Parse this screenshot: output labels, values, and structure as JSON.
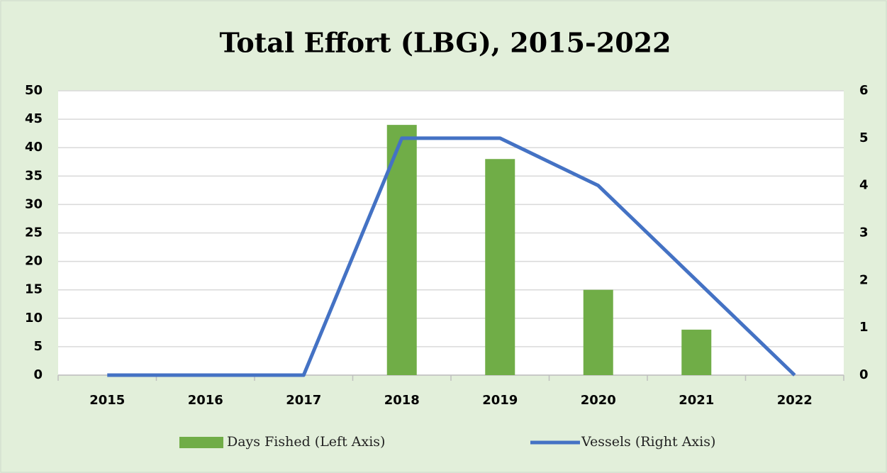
{
  "chart_data": {
    "type": "bar_line",
    "title": "Total Effort (LBG), 2015-2022",
    "categories": [
      "2015",
      "2016",
      "2017",
      "2018",
      "2019",
      "2020",
      "2021",
      "2022"
    ],
    "series": [
      {
        "name": "Days Fished (Left Axis)",
        "type": "bar",
        "color": "#70ad47",
        "values": [
          0,
          0,
          0,
          44,
          38,
          15,
          8,
          0
        ]
      },
      {
        "name": "Vessels (Right Axis)",
        "type": "line",
        "axis": "y2",
        "color": "#4472c4",
        "values": [
          0,
          0,
          0,
          5,
          5,
          4,
          2,
          0
        ]
      }
    ],
    "ylim": [
      0,
      50
    ],
    "yticks": [
      0,
      5,
      10,
      15,
      20,
      25,
      30,
      35,
      40,
      45,
      50
    ],
    "y2lim": [
      0,
      6
    ],
    "y2ticks": [
      0,
      1,
      2,
      3,
      4,
      5,
      6
    ],
    "grid": true,
    "legend": "bottom"
  }
}
